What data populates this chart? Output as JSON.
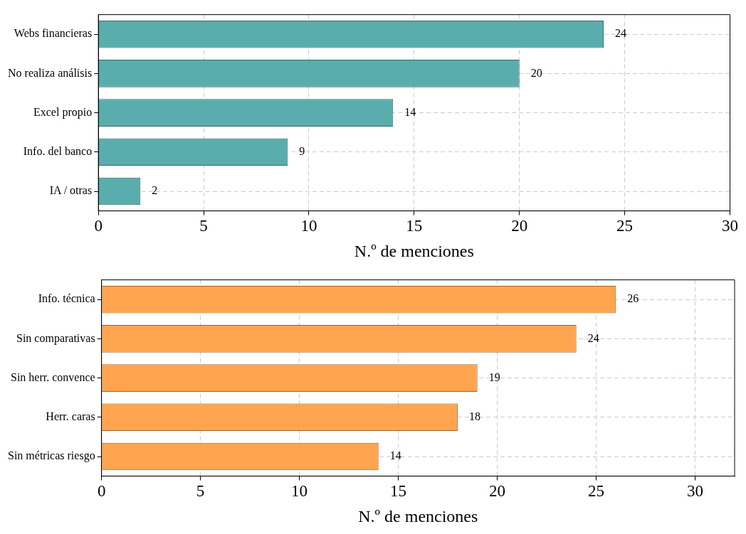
{
  "chart_data": [
    {
      "type": "bar",
      "orientation": "horizontal",
      "categories": [
        "Webs financieras",
        "No realiza análisis",
        "Excel propio",
        "Info. del banco",
        "IA / otras"
      ],
      "values": [
        24,
        20,
        14,
        9,
        2
      ],
      "color": "#5aadad",
      "xlim": [
        0,
        30
      ],
      "xticks": [
        0,
        5,
        10,
        15,
        20,
        25,
        30
      ],
      "xlabel": "N.º de menciones",
      "grid": true,
      "data_labels": true,
      "legend": false
    },
    {
      "type": "bar",
      "orientation": "horizontal",
      "categories": [
        "Info. técnica",
        "Sin comparativas",
        "Sin herr. convence",
        "Herr. caras",
        "Sin métricas riesgo"
      ],
      "values": [
        26,
        24,
        19,
        18,
        14
      ],
      "color": "#ffa54f",
      "xlim": [
        0,
        32
      ],
      "xticks": [
        0,
        5,
        10,
        15,
        20,
        25,
        30
      ],
      "xlabel": "N.º de menciones",
      "grid": true,
      "data_labels": true,
      "legend": false
    }
  ]
}
